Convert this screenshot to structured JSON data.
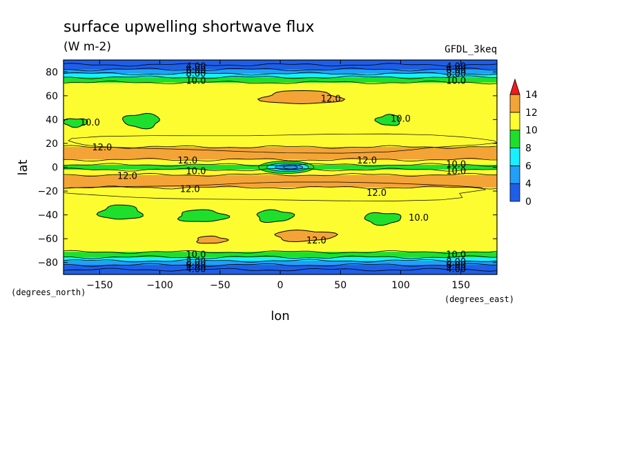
{
  "chart_data": {
    "type": "heatmap",
    "title": "surface upwelling shortwave flux",
    "units": "(W m-2)",
    "model": "GFDL_3keq",
    "xlabel": "lon",
    "ylabel": "lat",
    "x_units": "(degrees_east)",
    "y_units": "(degrees_north)",
    "xlim": [
      -180,
      180
    ],
    "ylim": [
      -90,
      90
    ],
    "x_ticks": [
      -150,
      -100,
      -50,
      0,
      50,
      100,
      150
    ],
    "y_ticks": [
      -80,
      -60,
      -40,
      -20,
      0,
      20,
      40,
      60,
      80
    ],
    "levels": [
      0,
      2,
      4,
      6,
      8,
      10,
      12,
      14
    ],
    "colorbar": {
      "ticks": [
        0,
        4,
        6,
        8,
        10,
        12,
        14
      ],
      "colors": [
        "#1f5fe8",
        "#20a0f8",
        "#18f0ff",
        "#1ee02c",
        "#fcfc30",
        "#f4a436"
      ],
      "extend_max_color": "#f01c1c"
    },
    "zonal_profile": [
      {
        "lat": -88,
        "value": 1
      },
      {
        "lat": -84,
        "value": 3
      },
      {
        "lat": -80,
        "value": 5
      },
      {
        "lat": -77,
        "value": 7
      },
      {
        "lat": -74,
        "value": 9
      },
      {
        "lat": -70,
        "value": 10.4
      },
      {
        "lat": -64,
        "value": 11.2
      },
      {
        "lat": -57,
        "value": 11.6
      },
      {
        "lat": -52,
        "value": 11.1
      },
      {
        "lat": -46,
        "value": 10.6
      },
      {
        "lat": -40,
        "value": 10.2
      },
      {
        "lat": -34,
        "value": 10.7
      },
      {
        "lat": -27,
        "value": 11.3
      },
      {
        "lat": -20,
        "value": 11.9
      },
      {
        "lat": -14,
        "value": 12.1
      },
      {
        "lat": -9,
        "value": 12.2
      },
      {
        "lat": -5,
        "value": 11.9
      },
      {
        "lat": -3,
        "value": 10.9
      },
      {
        "lat": -1.5,
        "value": 9.5
      },
      {
        "lat": 0,
        "value": 8.6
      },
      {
        "lat": 1.5,
        "value": 9.5
      },
      {
        "lat": 3,
        "value": 10.9
      },
      {
        "lat": 5,
        "value": 11.9
      },
      {
        "lat": 9,
        "value": 12.2
      },
      {
        "lat": 14,
        "value": 12.1
      },
      {
        "lat": 20,
        "value": 11.9
      },
      {
        "lat": 27,
        "value": 11.3
      },
      {
        "lat": 34,
        "value": 10.7
      },
      {
        "lat": 40,
        "value": 10.2
      },
      {
        "lat": 46,
        "value": 10.6
      },
      {
        "lat": 52,
        "value": 11.1
      },
      {
        "lat": 57,
        "value": 11.6
      },
      {
        "lat": 64,
        "value": 11.2
      },
      {
        "lat": 70,
        "value": 10.4
      },
      {
        "lat": 74,
        "value": 9
      },
      {
        "lat": 77,
        "value": 7
      },
      {
        "lat": 80,
        "value": 5
      },
      {
        "lat": 84,
        "value": 3
      },
      {
        "lat": 88,
        "value": 1
      }
    ],
    "equatorial_minimum": {
      "lon": 5,
      "lat": 0,
      "value": 4.5
    },
    "regions": [
      {
        "level": 12,
        "lon": [
          -15,
          50
        ],
        "lat": [
          53,
          64
        ]
      },
      {
        "level": 12,
        "lon": [
          -70,
          -45
        ],
        "lat": [
          -64,
          -58
        ]
      },
      {
        "level": 12,
        "lon": [
          -5,
          45
        ],
        "lat": [
          -62,
          -53
        ]
      },
      {
        "level": 8,
        "lon": [
          -180,
          -160
        ],
        "lat": [
          34,
          41
        ]
      },
      {
        "level": 8,
        "lon": [
          -130,
          -100
        ],
        "lat": [
          33,
          45
        ]
      },
      {
        "level": 8,
        "lon": [
          80,
          100
        ],
        "lat": [
          35,
          44
        ]
      },
      {
        "level": 8,
        "lon": [
          -150,
          -115
        ],
        "lat": [
          -44,
          -32
        ]
      },
      {
        "level": 8,
        "lon": [
          -85,
          -45
        ],
        "lat": [
          -46,
          -36
        ]
      },
      {
        "level": 8,
        "lon": [
          -20,
          10
        ],
        "lat": [
          -46,
          -36
        ]
      },
      {
        "level": 8,
        "lon": [
          70,
          100
        ],
        "lat": [
          -48,
          -38
        ]
      },
      {
        "level": 10,
        "lon": [
          -170,
          180
        ],
        "lat": [
          13,
          28
        ]
      },
      {
        "level": 10,
        "lon": [
          -170,
          180
        ],
        "lat": [
          -28,
          -13
        ]
      }
    ],
    "contour_labels": [
      {
        "text": "4.00",
        "lon": -70,
        "lat": 85
      },
      {
        "text": "6.00",
        "lon": -70,
        "lat": 82
      },
      {
        "text": "8.00",
        "lon": -70,
        "lat": 79
      },
      {
        "text": "10.0",
        "lon": -70,
        "lat": 73
      },
      {
        "text": "4.00",
        "lon": 146,
        "lat": 85
      },
      {
        "text": "6.00",
        "lon": 146,
        "lat": 82
      },
      {
        "text": "8.00",
        "lon": 146,
        "lat": 79
      },
      {
        "text": "10.0",
        "lon": 146,
        "lat": 73
      },
      {
        "text": "12.0",
        "lon": 42,
        "lat": 58
      },
      {
        "text": "10.0",
        "lon": -158,
        "lat": 38
      },
      {
        "text": "10.0",
        "lon": 100,
        "lat": 41
      },
      {
        "text": "12.0",
        "lon": -148,
        "lat": 17
      },
      {
        "text": "12.0",
        "lon": -77,
        "lat": 6
      },
      {
        "text": "10.0",
        "lon": -70,
        "lat": -3
      },
      {
        "text": "12.0",
        "lon": -127,
        "lat": -7
      },
      {
        "text": "12.0",
        "lon": 72,
        "lat": 6
      },
      {
        "text": "10.0",
        "lon": 146,
        "lat": 3
      },
      {
        "text": "10.0",
        "lon": 146,
        "lat": -3
      },
      {
        "text": "12.0",
        "lon": -75,
        "lat": -18
      },
      {
        "text": "12.0",
        "lon": 80,
        "lat": -21
      },
      {
        "text": "10.0",
        "lon": 115,
        "lat": -42
      },
      {
        "text": "12.0",
        "lon": 30,
        "lat": -61
      },
      {
        "text": "10.0",
        "lon": -70,
        "lat": -73
      },
      {
        "text": "8.00",
        "lon": -70,
        "lat": -79
      },
      {
        "text": "6.00",
        "lon": -70,
        "lat": -82
      },
      {
        "text": "4.00",
        "lon": -70,
        "lat": -85
      },
      {
        "text": "10.0",
        "lon": 146,
        "lat": -73
      },
      {
        "text": "8.00",
        "lon": 146,
        "lat": -79
      },
      {
        "text": "6.00",
        "lon": 146,
        "lat": -82
      },
      {
        "text": "4.00",
        "lon": 146,
        "lat": -85
      }
    ]
  }
}
